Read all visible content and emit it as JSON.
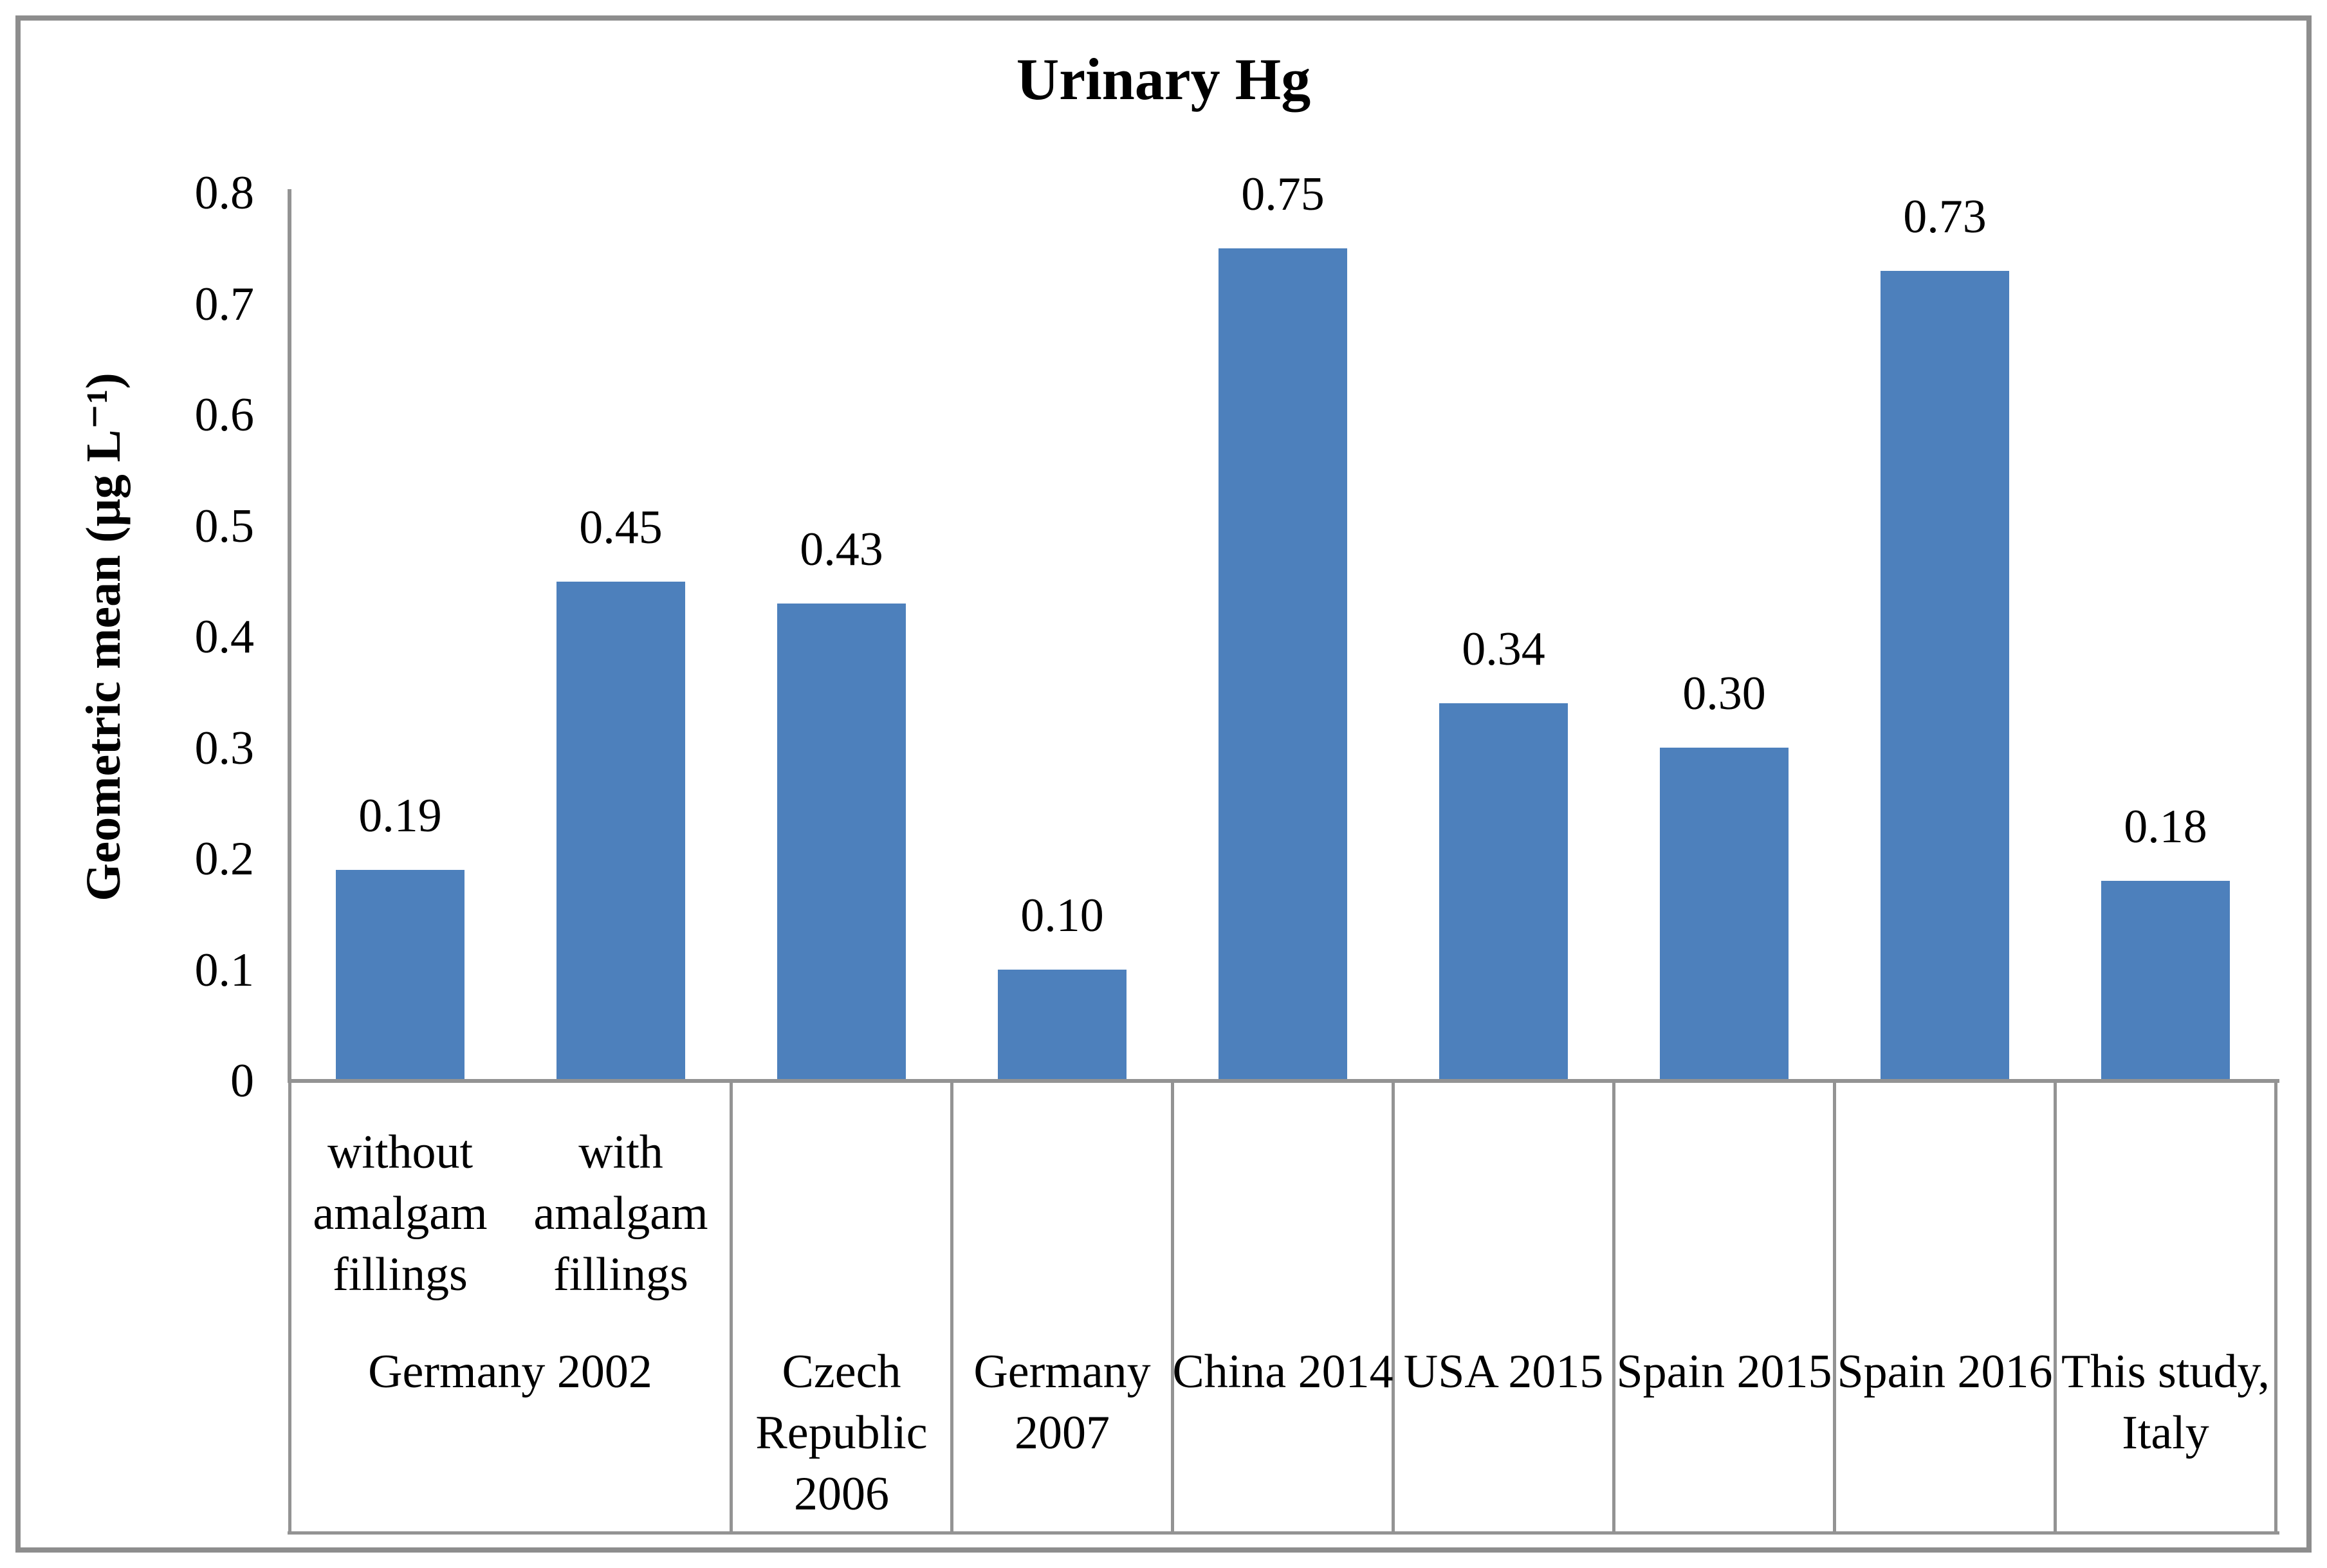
{
  "chart_data": {
    "type": "bar",
    "title": "Urinary Hg",
    "ylabel": "Geometric mean (μg L⁻¹)",
    "xlabel": "",
    "ylim": [
      0,
      0.8
    ],
    "ytick_step": 0.1,
    "yticks": [
      "0.8",
      "0.7",
      "0.6",
      "0.5",
      "0.4",
      "0.3",
      "0.2",
      "0.1",
      "0"
    ],
    "grid": false,
    "legend_position": "none",
    "bar_color": "#4D80BC",
    "axis_color": "#939393",
    "frame_color": "#8d8d8d",
    "categories": [
      "without amalgam fillings",
      "with amalgam fillings",
      "Czech Republic 2006",
      "Germany 2007",
      "China 2014",
      "USA 2015",
      "Spain 2015",
      "Spain 2016",
      "This study, Italy"
    ],
    "values": [
      0.19,
      0.45,
      0.43,
      0.1,
      0.75,
      0.34,
      0.3,
      0.73,
      0.18
    ],
    "value_labels": [
      "0.19",
      "0.45",
      "0.43",
      "0.10",
      "0.75",
      "0.34",
      "0.30",
      "0.73",
      "0.18"
    ],
    "groups": [
      {
        "label": "Germany 2002",
        "span": 2,
        "sublabels": [
          "without amalgam fillings",
          "with amalgam fillings"
        ]
      },
      {
        "label": "Czech Republic 2006",
        "span": 1
      },
      {
        "label": "Germany 2007",
        "span": 1
      },
      {
        "label": "China 2014",
        "span": 1
      },
      {
        "label": "USA 2015",
        "span": 1
      },
      {
        "label": "Spain 2015",
        "span": 1
      },
      {
        "label": "Spain 2016",
        "span": 1
      },
      {
        "label": "This study, Italy",
        "span": 1
      }
    ]
  }
}
